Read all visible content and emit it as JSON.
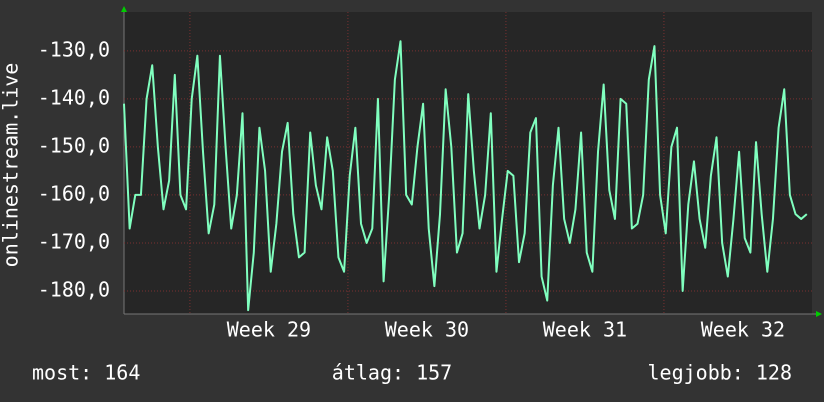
{
  "chart_data": {
    "type": "line",
    "y_label": "onlinestream.live",
    "x": [
      0,
      0.25,
      0.5,
      0.75,
      1,
      1.25,
      1.5,
      1.75,
      2,
      2.25,
      2.5,
      2.75,
      3,
      3.25,
      3.5,
      3.75,
      4,
      4.25,
      4.5,
      4.75,
      5,
      5.25,
      5.5,
      5.75,
      6,
      6.25,
      6.5,
      6.75,
      7,
      7.25,
      7.5,
      7.75,
      8,
      8.25,
      8.5,
      8.75,
      9,
      9.25,
      9.5,
      9.75,
      10,
      10.25,
      10.5,
      10.75,
      11,
      11.25,
      11.5,
      11.75,
      12,
      12.25,
      12.5,
      12.75,
      13,
      13.25,
      13.5,
      13.75,
      14,
      14.25,
      14.5,
      14.75,
      15,
      15.25,
      15.5,
      15.75,
      16,
      16.25,
      16.5,
      16.75,
      17,
      17.25,
      17.5,
      17.75,
      18,
      18.25,
      18.5,
      18.75,
      19,
      19.25,
      19.5,
      19.75,
      20,
      20.25,
      20.5,
      20.75,
      21,
      21.25,
      21.5,
      21.75,
      22,
      22.25,
      22.5,
      22.75,
      23,
      23.25,
      23.5,
      23.75,
      24,
      24.25,
      24.5,
      24.75,
      25,
      25.25,
      25.5,
      25.75,
      26,
      26.25,
      26.5,
      26.75,
      27,
      27.25,
      27.5,
      27.75,
      28,
      28.25,
      28.5,
      28.75,
      29,
      29.25,
      29.5,
      29.75,
      30,
      30.25
    ],
    "values": [
      -141,
      -167,
      -160,
      -160,
      -140,
      -133,
      -150,
      -163,
      -157,
      -135,
      -160,
      -163,
      -140,
      -131,
      -151,
      -168,
      -162,
      -131,
      -150,
      -167,
      -160,
      -143,
      -184,
      -172,
      -146,
      -155,
      -176,
      -166,
      -151,
      -145,
      -164,
      -173,
      -172,
      -147,
      -158,
      -163,
      -148,
      -155,
      -173,
      -176,
      -156,
      -146,
      -166,
      -170,
      -167,
      -140,
      -178,
      -160,
      -136,
      -128,
      -160,
      -162,
      -150,
      -141,
      -167,
      -179,
      -164,
      -138,
      -150,
      -172,
      -168,
      -139,
      -155,
      -167,
      -160,
      -143,
      -176,
      -165,
      -155,
      -156,
      -174,
      -168,
      -147,
      -144,
      -177,
      -182,
      -158,
      -146,
      -165,
      -170,
      -163,
      -147,
      -172,
      -176,
      -151,
      -137,
      -159,
      -165,
      -140,
      -141,
      -167,
      -166,
      -160,
      -136,
      -129,
      -160,
      -168,
      -150,
      -146,
      -180,
      -162,
      -153,
      -165,
      -171,
      -156,
      -148,
      -170,
      -177,
      -165,
      -151,
      -169,
      -172,
      -149,
      -164,
      -176,
      -165,
      -146,
      -138,
      -160,
      -164,
      -165,
      -164
    ],
    "color": "#80ffbf",
    "xlim": [
      0,
      30.48
    ],
    "xticks": [
      {
        "value": 2.92,
        "label": "Week 29"
      },
      {
        "value": 9.92,
        "label": "Week 30"
      },
      {
        "value": 16.92,
        "label": "Week 31"
      },
      {
        "value": 23.92,
        "label": "Week 32"
      }
    ],
    "ylim": [
      -184.8,
      -121.9
    ],
    "yticks": [
      {
        "value": -180,
        "label": "-180,0"
      },
      {
        "value": -170,
        "label": "-170,0"
      },
      {
        "value": -160,
        "label": "-160,0"
      },
      {
        "value": -150,
        "label": "-150,0"
      },
      {
        "value": -140,
        "label": "-140,0"
      },
      {
        "value": -130,
        "label": "-130,0"
      }
    ],
    "grid": true,
    "footer": [
      "most: 164",
      "átlag: 157",
      "legjobb: 128"
    ]
  }
}
